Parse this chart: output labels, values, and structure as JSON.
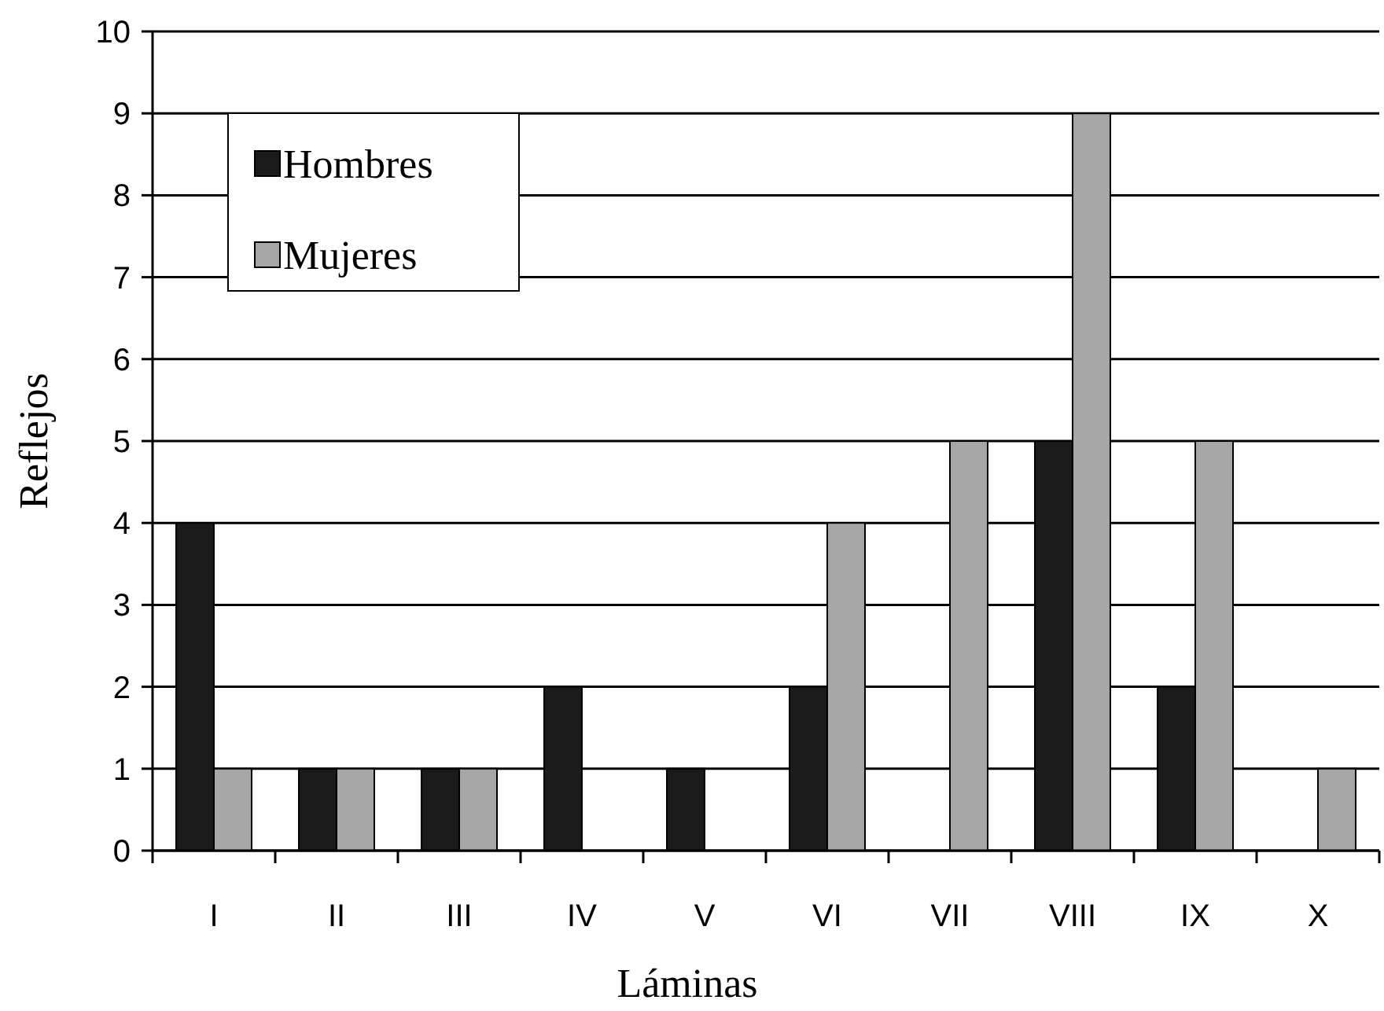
{
  "chart_data": {
    "type": "bar",
    "xlabel": "Láminas",
    "ylabel": "Reflejos",
    "categories": [
      "I",
      "II",
      "III",
      "IV",
      "V",
      "VI",
      "VII",
      "VIII",
      "IX",
      "X"
    ],
    "series": [
      {
        "name": "Hombres",
        "color": "#1a1a1a",
        "values": [
          4,
          1,
          1,
          2,
          1,
          2,
          0,
          5,
          2,
          0
        ]
      },
      {
        "name": "Mujeres",
        "color": "#a6a6a6",
        "values": [
          1,
          1,
          1,
          0,
          0,
          4,
          5,
          9,
          5,
          1
        ]
      }
    ],
    "ylim": [
      0,
      10
    ],
    "yticks": [
      0,
      1,
      2,
      3,
      4,
      5,
      6,
      7,
      8,
      9,
      10
    ],
    "grid": "y",
    "legend": "top left"
  }
}
